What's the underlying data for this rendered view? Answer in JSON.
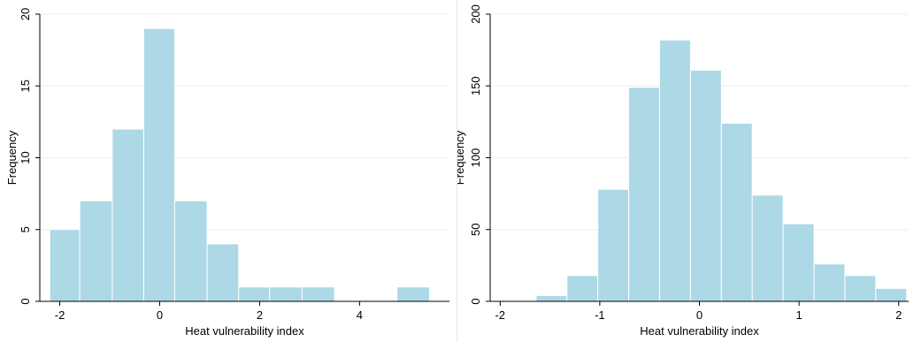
{
  "chart_data": [
    {
      "type": "bar",
      "title": "",
      "xlabel": "Heat vulnerability index",
      "ylabel": "Frequency",
      "xlim": [
        -2.4,
        5.8
      ],
      "ylim": [
        0,
        20
      ],
      "x_ticks": [
        -2,
        0,
        2,
        4
      ],
      "y_ticks": [
        0,
        5,
        10,
        15,
        20
      ],
      "grid": true,
      "bars": [
        {
          "x0": -2.2,
          "x1": -1.6,
          "value": 5
        },
        {
          "x0": -1.6,
          "x1": -0.95,
          "value": 7
        },
        {
          "x0": -0.95,
          "x1": -0.32,
          "value": 12
        },
        {
          "x0": -0.32,
          "x1": 0.3,
          "value": 19
        },
        {
          "x0": 0.3,
          "x1": 0.95,
          "value": 7
        },
        {
          "x0": 0.95,
          "x1": 1.58,
          "value": 4
        },
        {
          "x0": 1.58,
          "x1": 2.2,
          "value": 1
        },
        {
          "x0": 2.2,
          "x1": 2.85,
          "value": 1
        },
        {
          "x0": 2.85,
          "x1": 3.5,
          "value": 1
        },
        {
          "x0": 3.5,
          "x1": 4.12,
          "value": 0
        },
        {
          "x0": 4.12,
          "x1": 4.75,
          "value": 0
        },
        {
          "x0": 4.75,
          "x1": 5.4,
          "value": 1
        }
      ]
    },
    {
      "type": "bar",
      "title": "",
      "xlabel": "Heat vulnerability index",
      "ylabel": "Frequency",
      "xlim": [
        -2.1,
        2.1
      ],
      "ylim": [
        0,
        200
      ],
      "x_ticks": [
        -2,
        -1,
        0,
        1,
        2
      ],
      "y_ticks": [
        0,
        50,
        100,
        150,
        200
      ],
      "grid": true,
      "bars": [
        {
          "x0": -1.95,
          "x1": -1.64,
          "value": 0
        },
        {
          "x0": -1.64,
          "x1": -1.33,
          "value": 4
        },
        {
          "x0": -1.33,
          "x1": -1.02,
          "value": 18
        },
        {
          "x0": -1.02,
          "x1": -0.71,
          "value": 78
        },
        {
          "x0": -0.71,
          "x1": -0.4,
          "value": 149
        },
        {
          "x0": -0.4,
          "x1": -0.09,
          "value": 182
        },
        {
          "x0": -0.09,
          "x1": 0.22,
          "value": 161
        },
        {
          "x0": 0.22,
          "x1": 0.53,
          "value": 124
        },
        {
          "x0": 0.53,
          "x1": 0.84,
          "value": 74
        },
        {
          "x0": 0.84,
          "x1": 1.15,
          "value": 54
        },
        {
          "x0": 1.15,
          "x1": 1.46,
          "value": 26
        },
        {
          "x0": 1.46,
          "x1": 1.77,
          "value": 18
        },
        {
          "x0": 1.77,
          "x1": 2.08,
          "value": 9
        }
      ]
    }
  ],
  "colors": {
    "bar_fill": "#add8e6",
    "bar_stroke": "#ffffff",
    "grid": "#e8eef2",
    "axis": "#000000"
  }
}
